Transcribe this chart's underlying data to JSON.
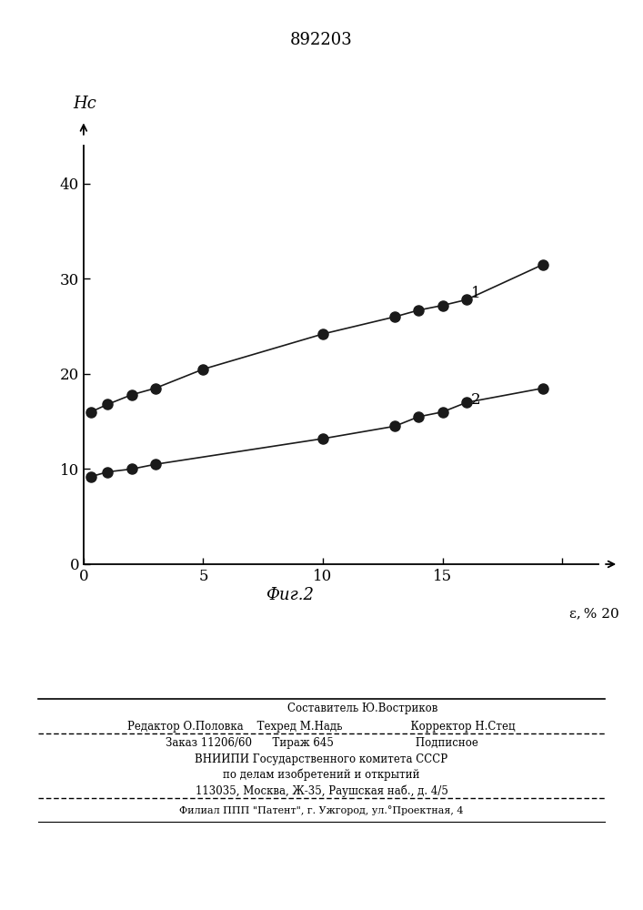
{
  "title": "892203",
  "ylabel": "Нс",
  "xlabel": "ε, %",
  "caption": "Фиг.2",
  "ylim": [
    0,
    44
  ],
  "xlim": [
    0,
    21.5
  ],
  "yticks": [
    0,
    10,
    20,
    30,
    40
  ],
  "xticks": [
    0,
    5,
    10,
    15,
    20
  ],
  "line1_x": [
    0.3,
    1.0,
    2.0,
    3.0,
    5.0,
    10.0,
    13.0,
    14.0,
    15.0,
    16.0,
    19.2
  ],
  "line1_y": [
    16.0,
    16.8,
    17.8,
    18.5,
    20.5,
    24.2,
    26.0,
    26.7,
    27.2,
    27.8,
    31.5
  ],
  "line2_x": [
    0.3,
    1.0,
    2.0,
    3.0,
    10.0,
    13.0,
    14.0,
    15.0,
    16.0,
    19.2
  ],
  "line2_y": [
    9.2,
    9.7,
    10.0,
    10.5,
    13.2,
    14.5,
    15.5,
    16.0,
    17.0,
    18.5
  ],
  "label1": "1",
  "label2": "2",
  "marker_color": "#1a1a1a",
  "line_color": "#1a1a1a",
  "bg_color": "#ffffff",
  "footer_text1": "                        Составитель Ю.Востриков",
  "footer_text2": "Редактор О.Половка    Техред М.Надь                    Корректор Н.Стец",
  "footer_text3": "Заказ 11206/60      Тираж 645                        Подписное",
  "footer_text4": "ВНИИПИ Государственного комитета СССР",
  "footer_text5": "по делам изобретений и открытий",
  "footer_text6": "113035, Москва, Ж-35, Раушская наб., д. 4/5",
  "footer_text7": "Филиал ППП \"Патент\", г. Ужгород, ул.°Проектная, 4"
}
